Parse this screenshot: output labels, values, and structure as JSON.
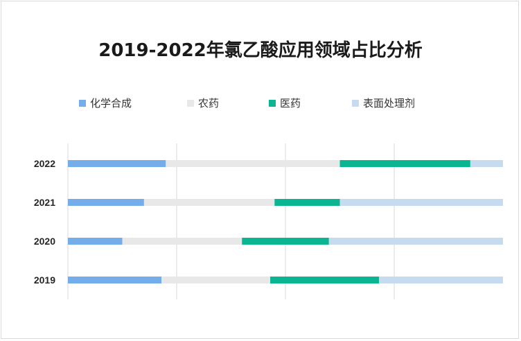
{
  "chart_data": {
    "type": "bar",
    "orientation": "horizontal",
    "stacked": "percent",
    "title": "2019-2022年氯乙酸应用领域占比分析",
    "categories": [
      "2022",
      "2021",
      "2020",
      "2019"
    ],
    "series": [
      {
        "name": "化学合成",
        "values": [
          22.5,
          17.5,
          12.5,
          21.5
        ],
        "color": "#74aeea"
      },
      {
        "name": "农药",
        "values": [
          40,
          30,
          27.5,
          25
        ],
        "color": "#e8e8e8"
      },
      {
        "name": "医药",
        "values": [
          30,
          15,
          20,
          25
        ],
        "color": "#0cb591"
      },
      {
        "name": "表面处理剂",
        "values": [
          7.5,
          37.5,
          40,
          28.5
        ],
        "color": "#c7dbf0"
      }
    ],
    "xlim": [
      0,
      100
    ],
    "grid": true,
    "legend_position": "top"
  }
}
